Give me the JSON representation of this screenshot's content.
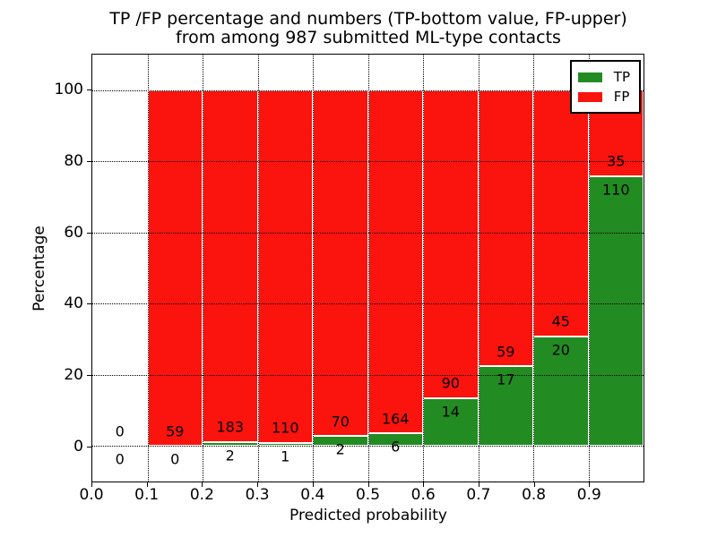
{
  "title": {
    "line1": "TP /FP percentage and numbers (TP-bottom value, FP-upper)",
    "line2": "from among 987 submitted ML-type contacts"
  },
  "axes": {
    "ylabel": "Percentage",
    "xlabel": "Predicted probability",
    "ylim": [
      -10,
      110
    ],
    "xlim": [
      0.0,
      1.0
    ],
    "ytick_labels": [
      "0",
      "20",
      "40",
      "60",
      "80",
      "100"
    ],
    "ytick_values": [
      0,
      20,
      40,
      60,
      80,
      100
    ],
    "xtick_labels": [
      "0.0",
      "0.1",
      "0.2",
      "0.3",
      "0.4",
      "0.5",
      "0.6",
      "0.7",
      "0.8",
      "0.9"
    ],
    "xtick_values": [
      0.0,
      0.1,
      0.2,
      0.3,
      0.4,
      0.5,
      0.6,
      0.7,
      0.8,
      0.9
    ],
    "grid": "dotted black, horizontal and vertical"
  },
  "legend": {
    "position": "upper-right",
    "items": [
      {
        "label": "TP",
        "color": "#228b22"
      },
      {
        "label": "FP",
        "color": "#fb130e"
      }
    ]
  },
  "colors": {
    "tp": "#228b22",
    "fp": "#fb130e",
    "edge": "#ffffff",
    "text": "#000000",
    "background": "#ffffff"
  },
  "chart_data": {
    "type": "bar",
    "stacked": true,
    "normalized_to_percent": true,
    "total_contacts": 987,
    "title": "TP /FP percentage and numbers (TP-bottom value, FP-upper) from among 987 submitted ML-type contacts",
    "xlabel": "Predicted probability",
    "ylabel": "Percentage",
    "bin_width": 0.1,
    "series_note": "Each bar stacks TP (green, bottom) and FP (red, top) to 100%; numeric labels show raw counts: TP below boundary, FP above boundary",
    "bins": [
      {
        "range": [
          0.0,
          0.1
        ],
        "tp": 0,
        "fp": 0,
        "tp_pct": 0.0,
        "fp_pct": 0.0,
        "has_bar": false
      },
      {
        "range": [
          0.1,
          0.2
        ],
        "tp": 0,
        "fp": 59,
        "tp_pct": 0.0,
        "fp_pct": 100.0,
        "has_bar": true
      },
      {
        "range": [
          0.2,
          0.3
        ],
        "tp": 2,
        "fp": 183,
        "tp_pct": 1.08,
        "fp_pct": 98.92,
        "has_bar": true
      },
      {
        "range": [
          0.3,
          0.4
        ],
        "tp": 1,
        "fp": 110,
        "tp_pct": 0.9,
        "fp_pct": 99.1,
        "has_bar": true
      },
      {
        "range": [
          0.4,
          0.5
        ],
        "tp": 2,
        "fp": 70,
        "tp_pct": 2.78,
        "fp_pct": 97.22,
        "has_bar": true
      },
      {
        "range": [
          0.5,
          0.6
        ],
        "tp": 6,
        "fp": 164,
        "tp_pct": 3.53,
        "fp_pct": 96.47,
        "has_bar": true
      },
      {
        "range": [
          0.6,
          0.7
        ],
        "tp": 14,
        "fp": 90,
        "tp_pct": 13.46,
        "fp_pct": 86.54,
        "has_bar": true
      },
      {
        "range": [
          0.7,
          0.8
        ],
        "tp": 17,
        "fp": 59,
        "tp_pct": 22.37,
        "fp_pct": 77.63,
        "has_bar": true
      },
      {
        "range": [
          0.8,
          0.9
        ],
        "tp": 20,
        "fp": 45,
        "tp_pct": 30.77,
        "fp_pct": 69.23,
        "has_bar": true
      },
      {
        "range": [
          0.9,
          1.0
        ],
        "tp": 110,
        "fp": 35,
        "tp_pct": 75.86,
        "fp_pct": 24.14,
        "has_bar": true
      }
    ]
  }
}
